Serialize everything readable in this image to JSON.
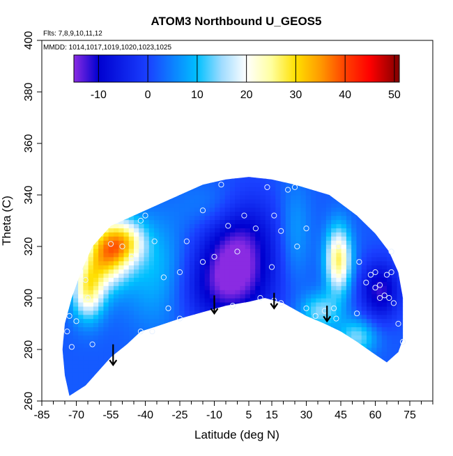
{
  "chart_data": {
    "type": "heatmap",
    "title": "ATOM3 Northbound U_GEOS5",
    "flights_label": "Flts: 7,8,9,10,11,12",
    "mmdd_label": "MMDD: 1014,1017,1019,1020,1023,1025",
    "xlabel": "Latitude (deg N)",
    "ylabel": "Theta (C)",
    "xlim": [
      -85,
      85
    ],
    "ylim": [
      260,
      400
    ],
    "x_tick_labels": [
      "-85",
      "-70",
      "-55",
      "-40",
      "-25",
      "-10",
      "5",
      "15",
      "30",
      "45",
      "60",
      "75"
    ],
    "x_tick_values": [
      -85,
      -70,
      -55,
      -40,
      -25,
      -10,
      5,
      15,
      30,
      45,
      60,
      75
    ],
    "y_tick_labels": [
      "260",
      "280",
      "300",
      "320",
      "340",
      "360",
      "380",
      "400"
    ],
    "y_tick_values": [
      260,
      280,
      300,
      320,
      340,
      360,
      380,
      400
    ],
    "colorbar": {
      "range": [
        -15,
        51
      ],
      "tick_labels": [
        "-10",
        "0",
        "10",
        "20",
        "30",
        "40",
        "50"
      ],
      "tick_values": [
        -10,
        0,
        10,
        20,
        30,
        40,
        50
      ],
      "stops": [
        {
          "v": -15,
          "color": "#8a2be2"
        },
        {
          "v": -10,
          "color": "#0000d0"
        },
        {
          "v": 0,
          "color": "#1a40ff"
        },
        {
          "v": 10,
          "color": "#00c0ff"
        },
        {
          "v": 15,
          "color": "#a0dcff"
        },
        {
          "v": 20,
          "color": "#ffffff"
        },
        {
          "v": 25,
          "color": "#ffffa0"
        },
        {
          "v": 30,
          "color": "#ffe000"
        },
        {
          "v": 35,
          "color": "#ff9a00"
        },
        {
          "v": 40,
          "color": "#ff4000"
        },
        {
          "v": 45,
          "color": "#ff0000"
        },
        {
          "v": 51,
          "color": "#800000"
        }
      ]
    },
    "domain_outline": [
      [
        -73,
        262
      ],
      [
        -66,
        266
      ],
      [
        -60,
        272
      ],
      [
        -55,
        277
      ],
      [
        -48,
        282
      ],
      [
        -42,
        287
      ],
      [
        -35,
        289
      ],
      [
        -25,
        292
      ],
      [
        -15,
        294.5
      ],
      [
        -5,
        297
      ],
      [
        5,
        298.5
      ],
      [
        12,
        300
      ],
      [
        20,
        298
      ],
      [
        30,
        293
      ],
      [
        38,
        290
      ],
      [
        45,
        287
      ],
      [
        52,
        283
      ],
      [
        60,
        278
      ],
      [
        65,
        275
      ],
      [
        70,
        279
      ],
      [
        72,
        284
      ],
      [
        72,
        300
      ],
      [
        70,
        310
      ],
      [
        66,
        318
      ],
      [
        60,
        325
      ],
      [
        52,
        332
      ],
      [
        40,
        340
      ],
      [
        25,
        344
      ],
      [
        15,
        346
      ],
      [
        5,
        347
      ],
      [
        -5,
        346
      ],
      [
        -15,
        344
      ],
      [
        -30,
        338
      ],
      [
        -45,
        332
      ],
      [
        -55,
        328
      ],
      [
        -63,
        320
      ],
      [
        -68,
        310
      ],
      [
        -72,
        300
      ],
      [
        -75,
        290
      ],
      [
        -76,
        280
      ],
      [
        -75,
        270
      ]
    ],
    "wind_field": {
      "background": 2,
      "features": [
        {
          "lat": 0,
          "theta": 320,
          "value": -14,
          "sx": 12,
          "sy": 14
        },
        {
          "lat": -6,
          "theta": 303,
          "value": -8,
          "sx": 14,
          "sy": 10
        },
        {
          "lat": 62,
          "theta": 303,
          "value": -12,
          "sx": 6,
          "sy": 8
        },
        {
          "lat": -57,
          "theta": 318,
          "value": 32,
          "sx": 7,
          "sy": 9
        },
        {
          "lat": -65,
          "theta": 303,
          "value": 24,
          "sx": 5,
          "sy": 8
        },
        {
          "lat": -48,
          "theta": 322,
          "value": 18,
          "sx": 6,
          "sy": 6
        },
        {
          "lat": 44,
          "theta": 315,
          "value": 27,
          "sx": 4,
          "sy": 9
        },
        {
          "lat": 36,
          "theta": 295,
          "value": 14,
          "sx": 6,
          "sy": 5
        },
        {
          "lat": -35,
          "theta": 310,
          "value": 10,
          "sx": 10,
          "sy": 15
        },
        {
          "lat": 25,
          "theta": 325,
          "value": 8,
          "sx": 5,
          "sy": 14
        },
        {
          "lat": 52,
          "theta": 285,
          "value": 14,
          "sx": 6,
          "sy": 5
        },
        {
          "lat": -10,
          "theta": 335,
          "value": 8,
          "sx": 10,
          "sy": 8
        }
      ]
    },
    "observations": [
      [
        -74,
        287
      ],
      [
        -72,
        281
      ],
      [
        -73,
        293
      ],
      [
        -70,
        291
      ],
      [
        -66,
        307
      ],
      [
        -65,
        300
      ],
      [
        -63,
        282
      ],
      [
        -55,
        321
      ],
      [
        -50,
        320
      ],
      [
        -46,
        316
      ],
      [
        -42,
        330
      ],
      [
        -40,
        332
      ],
      [
        -36,
        322
      ],
      [
        -42,
        287
      ],
      [
        -37,
        287
      ],
      [
        -32,
        308
      ],
      [
        -30,
        296
      ],
      [
        -25,
        310
      ],
      [
        -25,
        292
      ],
      [
        -22,
        322
      ],
      [
        -15,
        314
      ],
      [
        -15,
        334
      ],
      [
        -10,
        316
      ],
      [
        -7,
        344
      ],
      [
        -4,
        328
      ],
      [
        -2,
        297
      ],
      [
        0,
        318
      ],
      [
        3,
        332
      ],
      [
        8,
        327
      ],
      [
        10,
        300
      ],
      [
        13,
        343
      ],
      [
        15,
        312
      ],
      [
        16,
        299
      ],
      [
        16,
        332
      ],
      [
        19,
        326
      ],
      [
        19,
        298
      ],
      [
        22,
        342
      ],
      [
        25,
        343
      ],
      [
        26,
        320
      ],
      [
        30,
        296
      ],
      [
        30,
        327
      ],
      [
        34,
        293
      ],
      [
        38,
        295
      ],
      [
        42,
        296
      ],
      [
        43,
        292
      ],
      [
        44,
        320
      ],
      [
        52,
        294
      ],
      [
        53,
        314
      ],
      [
        56,
        306
      ],
      [
        58,
        309
      ],
      [
        60,
        304
      ],
      [
        60,
        310
      ],
      [
        62,
        305
      ],
      [
        62,
        300
      ],
      [
        64,
        301
      ],
      [
        65,
        309
      ],
      [
        66,
        300
      ],
      [
        67,
        310
      ],
      [
        67,
        318
      ],
      [
        68,
        298
      ],
      [
        70,
        290
      ],
      [
        72,
        283
      ]
    ],
    "arrows": [
      {
        "lat": -54,
        "theta_start": 282,
        "theta_end": 274
      },
      {
        "lat": -10,
        "theta_start": 301,
        "theta_end": 294
      },
      {
        "lat": 16,
        "theta_start": 302,
        "theta_end": 296
      },
      {
        "lat": 39,
        "theta_start": 297,
        "theta_end": 291
      }
    ]
  }
}
